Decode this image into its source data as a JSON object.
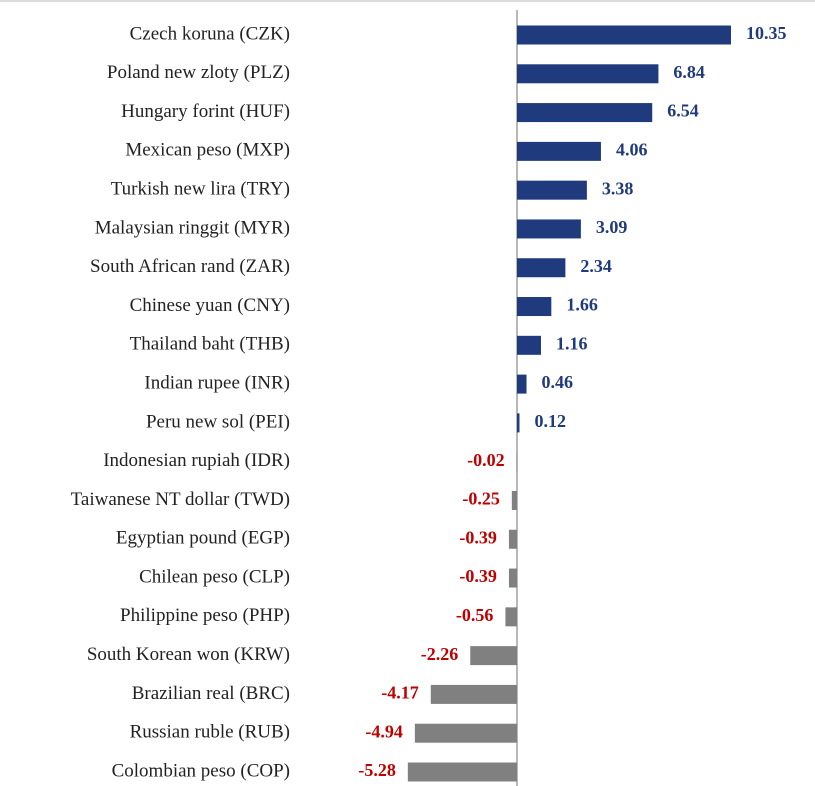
{
  "chart_data": {
    "type": "hbar",
    "categories": [
      "Czech koruna (CZK)",
      "Poland new zloty (PLZ)",
      "Hungary forint (HUF)",
      "Mexican peso (MXP)",
      "Turkish new lira (TRY)",
      "Malaysian ringgit (MYR)",
      "South African rand (ZAR)",
      "Chinese yuan (CNY)",
      "Thailand baht (THB)",
      "Indian rupee (INR)",
      "Peru new sol (PEI)",
      "Indonesian rupiah (IDR)",
      "Taiwanese NT dollar (TWD)",
      "Egyptian pound (EGP)",
      "Chilean peso (CLP)",
      "Philippine peso (PHP)",
      "South Korean won (KRW)",
      "Brazilian real (BRC)",
      "Russian ruble (RUB)",
      "Colombian peso (COP)"
    ],
    "values": [
      10.35,
      6.84,
      6.54,
      4.06,
      3.38,
      3.09,
      2.34,
      1.66,
      1.16,
      0.46,
      0.12,
      -0.02,
      -0.25,
      -0.39,
      -0.39,
      -0.56,
      -2.26,
      -4.17,
      -4.94,
      -5.28
    ],
    "positive_color": "#1f3a7d",
    "negative_color": "#808080",
    "positive_label_color": "#1f3a7d",
    "negative_label_color": "#c00000"
  }
}
